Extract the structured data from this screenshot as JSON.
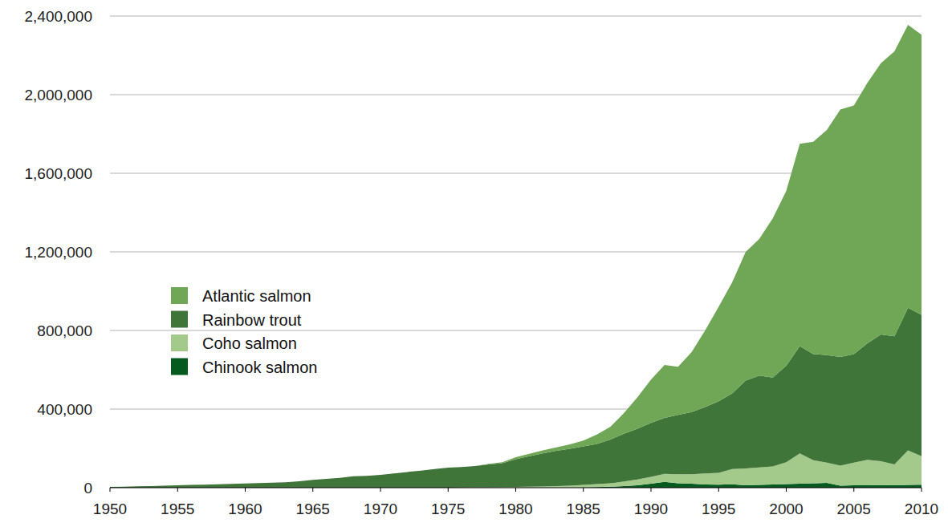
{
  "chart_data": {
    "type": "area",
    "stacked": true,
    "grid": true,
    "legend": "left",
    "x": [
      1950,
      1951,
      1952,
      1953,
      1954,
      1955,
      1956,
      1957,
      1958,
      1959,
      1960,
      1961,
      1962,
      1963,
      1964,
      1965,
      1966,
      1967,
      1968,
      1969,
      1970,
      1971,
      1972,
      1973,
      1974,
      1975,
      1976,
      1977,
      1978,
      1979,
      1980,
      1981,
      1982,
      1983,
      1984,
      1985,
      1986,
      1987,
      1988,
      1989,
      1990,
      1991,
      1992,
      1993,
      1994,
      1995,
      1996,
      1997,
      1998,
      1999,
      2000,
      2001,
      2002,
      2003,
      2004,
      2005,
      2006,
      2007,
      2008,
      2009,
      2010
    ],
    "xlim": [
      1950,
      2010
    ],
    "xticks": [
      1950,
      1955,
      1960,
      1965,
      1970,
      1975,
      1980,
      1985,
      1990,
      1995,
      2000,
      2005,
      2010
    ],
    "ylim": [
      0,
      2400000
    ],
    "yticks": [
      0,
      {
        "value": 400000,
        "label": "400,000"
      },
      {
        "value": 800000,
        "label": "800,000"
      },
      {
        "value": 1200000,
        "label": "1,200,000"
      },
      {
        "value": 1600000,
        "label": "1,600,000"
      },
      {
        "value": 2000000,
        "label": "2,000,000"
      },
      {
        "value": 2400000,
        "label": "2,400,000"
      }
    ],
    "series": [
      {
        "name": "Atlantic salmon",
        "color": "#6fa757",
        "values": [
          0,
          0,
          0,
          0,
          0,
          0,
          0,
          0,
          0,
          0,
          0,
          0,
          0,
          0,
          0,
          0,
          0,
          0,
          0,
          0,
          0,
          0,
          0,
          0,
          0,
          0,
          0,
          0,
          3000,
          5000,
          10000,
          12000,
          15000,
          17000,
          22000,
          30000,
          48000,
          65000,
          105000,
          160000,
          220000,
          270000,
          245000,
          305000,
          390000,
          480000,
          565000,
          655000,
          695000,
          810000,
          890000,
          1030000,
          1080000,
          1145000,
          1260000,
          1265000,
          1325000,
          1380000,
          1450000,
          1440000,
          1425000
        ]
      },
      {
        "name": "Rainbow trout",
        "color": "#3f7538",
        "values": [
          4000,
          5000,
          7000,
          8000,
          10000,
          12000,
          14000,
          15000,
          17000,
          19000,
          21000,
          23000,
          26000,
          28000,
          33000,
          40000,
          45000,
          50000,
          58000,
          60000,
          65000,
          72000,
          80000,
          87000,
          95000,
          102000,
          104000,
          108000,
          116000,
          122000,
          141000,
          155000,
          169000,
          180000,
          188000,
          196000,
          204000,
          223000,
          243000,
          258000,
          275000,
          285000,
          302000,
          317000,
          338000,
          364000,
          385000,
          447000,
          467000,
          452000,
          490000,
          545000,
          540000,
          547000,
          553000,
          552000,
          593000,
          645000,
          652000,
          725000,
          720000
        ]
      },
      {
        "name": "Coho salmon",
        "color": "#a3c98b",
        "values": [
          0,
          0,
          0,
          0,
          0,
          0,
          0,
          0,
          0,
          0,
          0,
          0,
          0,
          0,
          0,
          0,
          0,
          0,
          0,
          0,
          0,
          0,
          0,
          0,
          0,
          0,
          1000,
          1000,
          1000,
          2000,
          3000,
          4000,
          5000,
          7000,
          9000,
          13000,
          15000,
          17000,
          24000,
          30000,
          35000,
          40000,
          46000,
          48000,
          56000,
          61000,
          78000,
          86000,
          89000,
          92000,
          112000,
          155000,
          118000,
          103000,
          102000,
          116000,
          130000,
          122000,
          106000,
          176000,
          145000
        ]
      },
      {
        "name": "Chinook salmon",
        "color": "#045a1f",
        "values": [
          0,
          0,
          0,
          0,
          0,
          0,
          0,
          0,
          0,
          0,
          0,
          0,
          0,
          0,
          0,
          0,
          0,
          0,
          0,
          0,
          0,
          0,
          0,
          0,
          0,
          0,
          0,
          1000,
          1000,
          1000,
          1000,
          1000,
          1000,
          1000,
          1000,
          1000,
          3000,
          5000,
          8000,
          12000,
          20000,
          30000,
          22000,
          20000,
          16000,
          15000,
          17000,
          12000,
          14000,
          16000,
          18000,
          20000,
          22000,
          25000,
          10000,
          12000,
          12000,
          13000,
          12000,
          14000,
          15000
        ]
      }
    ]
  }
}
